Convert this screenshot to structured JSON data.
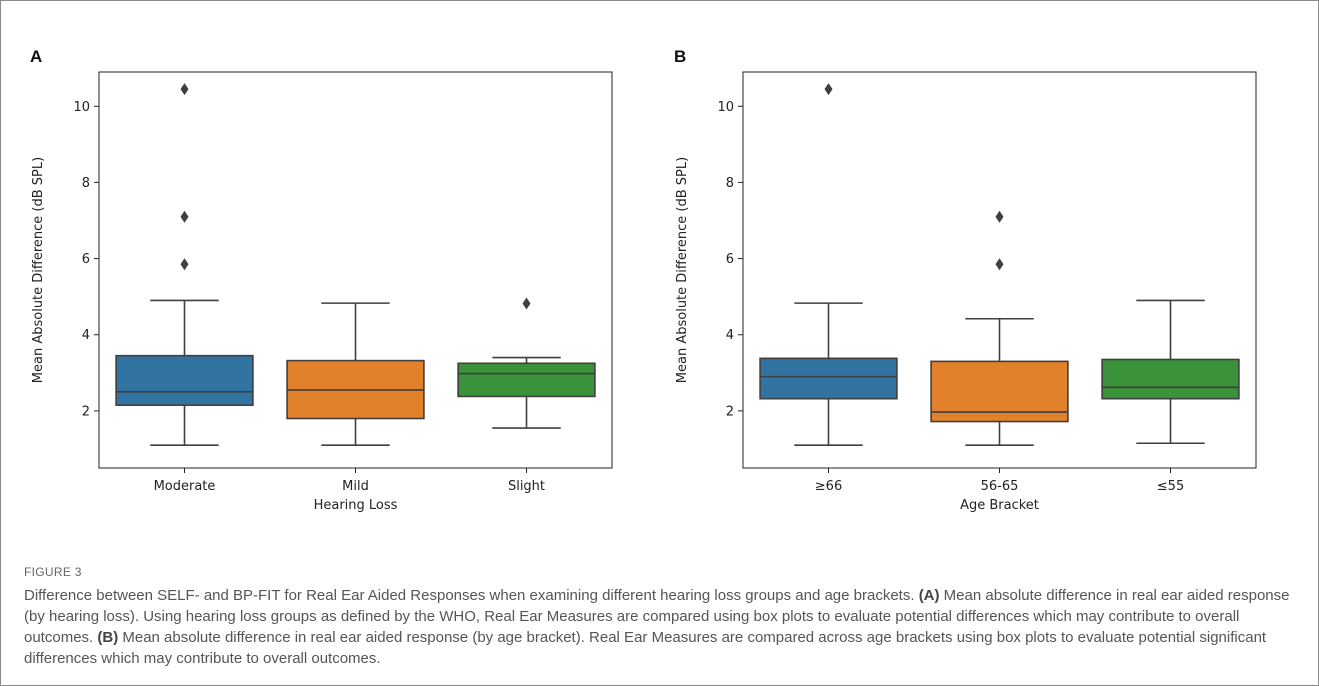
{
  "chart_data": [
    {
      "panel_label": "A",
      "type": "box",
      "xlabel": "Hearing Loss",
      "ylabel": "Mean Absolute Difference (dB SPL)",
      "yticks": [
        2,
        4,
        6,
        8,
        10
      ],
      "ylim": [
        0.5,
        10.9
      ],
      "grid": false,
      "categories": [
        "Moderate",
        "Mild",
        "Slight"
      ],
      "colors": [
        "#3274a1",
        "#e1812c",
        "#3a923a"
      ],
      "boxes": [
        {
          "whisker_low": 1.1,
          "q1": 2.15,
          "median": 2.5,
          "q3": 3.45,
          "whisker_high": 4.9,
          "outliers": [
            10.45,
            7.1,
            5.85
          ]
        },
        {
          "whisker_low": 1.1,
          "q1": 1.8,
          "median": 2.55,
          "q3": 3.32,
          "whisker_high": 4.83,
          "outliers": []
        },
        {
          "whisker_low": 1.55,
          "q1": 2.38,
          "median": 2.98,
          "q3": 3.25,
          "whisker_high": 3.4,
          "outliers": [
            4.82
          ]
        }
      ]
    },
    {
      "panel_label": "B",
      "type": "box",
      "xlabel": "Age Bracket",
      "ylabel": "Mean Absolute Difference (dB SPL)",
      "yticks": [
        2,
        4,
        6,
        8,
        10
      ],
      "ylim": [
        0.5,
        10.9
      ],
      "grid": false,
      "categories": [
        "≥66",
        "56-65",
        "≤55"
      ],
      "colors": [
        "#3274a1",
        "#e1812c",
        "#3a923a"
      ],
      "boxes": [
        {
          "whisker_low": 1.1,
          "q1": 2.32,
          "median": 2.9,
          "q3": 3.38,
          "whisker_high": 4.83,
          "outliers": [
            10.45
          ]
        },
        {
          "whisker_low": 1.1,
          "q1": 1.72,
          "median": 1.97,
          "q3": 3.3,
          "whisker_high": 4.42,
          "outliers": [
            7.1,
            5.85
          ]
        },
        {
          "whisker_low": 1.15,
          "q1": 2.32,
          "median": 2.62,
          "q3": 3.35,
          "whisker_high": 4.9,
          "outliers": []
        }
      ]
    }
  ],
  "caption": {
    "figure_label": "FIGURE 3",
    "intro": "Difference between SELF- and BP-FIT for Real Ear Aided Responses when examining different hearing loss groups and age brackets. ",
    "a_label": "(A)",
    "a_text": " Mean absolute difference in real ear aided response (by hearing loss). Using hearing loss groups as defined by the WHO, Real Ear Measures are compared using box plots to evaluate potential differences which may contribute to overall outcomes. ",
    "b_label": "(B)",
    "b_text": " Mean absolute difference in real ear aided response (by age bracket). Real Ear Measures are compared across age brackets using box plots to evaluate potential significant differences which may contribute to overall outcomes."
  }
}
